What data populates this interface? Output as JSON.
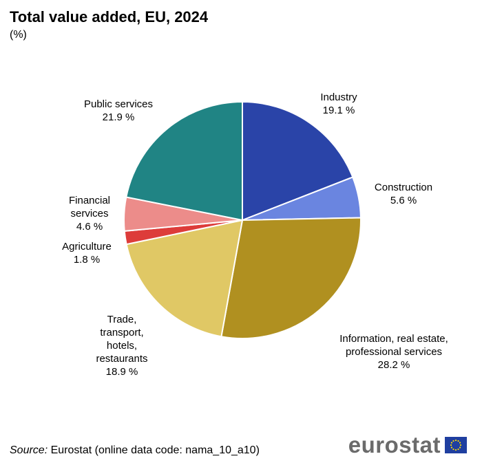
{
  "colors": {
    "Industry": "#2a44a8",
    "Construction": "#6a85e0",
    "Information, real estate, professional services": "#b09020",
    "Trade, transport, hotels, restaurants": "#e0c865",
    "Agriculture": "#dd3c3a",
    "Financial services": "#ec8c8a",
    "Public services": "#208484"
  },
  "chart_data": {
    "type": "pie",
    "title": "Total value added, EU, 2024",
    "subtitle": "(%)",
    "unit": "%",
    "slices": [
      {
        "name": "Industry",
        "value": 19.1,
        "label_lines": [
          "Industry",
          "19.1 %"
        ]
      },
      {
        "name": "Construction",
        "value": 5.6,
        "label_lines": [
          "Construction",
          "5.6 %"
        ]
      },
      {
        "name": "Information, real estate, professional services",
        "value": 28.2,
        "label_lines": [
          "Information, real estate,",
          "professional services",
          "28.2 %"
        ]
      },
      {
        "name": "Trade, transport, hotels, restaurants",
        "value": 18.9,
        "label_lines": [
          "Trade,",
          "transport,",
          "hotels,",
          "restaurants",
          "18.9 %"
        ]
      },
      {
        "name": "Agriculture",
        "value": 1.8,
        "label_lines": [
          "Agriculture",
          "1.8 %"
        ]
      },
      {
        "name": "Financial services",
        "value": 4.6,
        "label_lines": [
          "Financial",
          "services",
          "4.6 %"
        ]
      },
      {
        "name": "Public services",
        "value": 21.9,
        "label_lines": [
          "Public services",
          "21.9 %"
        ]
      }
    ]
  },
  "source": {
    "prefix": "Source:",
    "text": " Eurostat (online data code: nama_10_a10)"
  },
  "logo": {
    "text": "eurostat"
  }
}
